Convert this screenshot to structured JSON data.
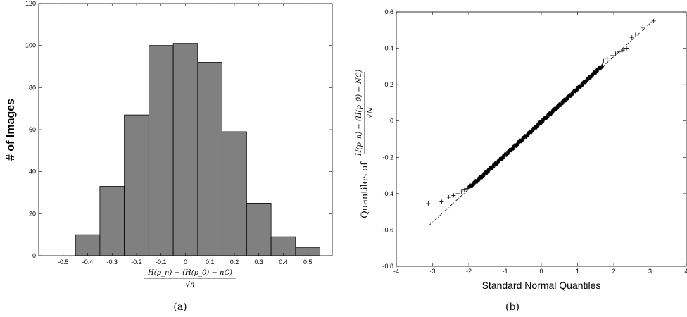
{
  "chart_data": [
    {
      "type": "bar",
      "panel": "(a)",
      "categories": [
        "-0.4",
        "-0.3",
        "-0.2",
        "-0.1",
        "0",
        "0.1",
        "0.2",
        "0.3",
        "0.4",
        "0.5"
      ],
      "values": [
        10,
        33,
        67,
        100,
        101,
        92,
        59,
        25,
        9,
        4
      ],
      "xlabel_num": "H(p_n) − (H(p_0) − nC)",
      "xlabel_den": "√n",
      "ylabel": "# of Images",
      "xlim": [
        -0.6,
        0.6
      ],
      "ylim": [
        0,
        120
      ],
      "xticks": [
        "-0.5",
        "-0.4",
        "-0.3",
        "-0.2",
        "-0.1",
        "0",
        "0.1",
        "0.2",
        "0.3",
        "0.4",
        "0.5"
      ],
      "yticks": [
        "0",
        "20",
        "40",
        "60",
        "80",
        "100",
        "120"
      ],
      "bar_color": "#808080",
      "grid": false
    },
    {
      "type": "scatter",
      "panel": "(b)",
      "xlabel": "Standard Normal Quantiles",
      "ylabel_prefix": "Quantiles of",
      "ylabel_num": "H(p_n) − (H(p_0) + NC)",
      "ylabel_den": "√N",
      "xlim": [
        -4,
        4
      ],
      "ylim": [
        -0.8,
        0.6
      ],
      "xticks": [
        "-4",
        "-3",
        "-2",
        "-1",
        "0",
        "1",
        "2",
        "3",
        "4"
      ],
      "yticks": [
        "-0.8",
        "-0.6",
        "-0.4",
        "-0.2",
        "0",
        "0.2",
        "0.4",
        "0.6"
      ],
      "reference_line": {
        "x": [
          -3.1,
          3.1
        ],
        "y": [
          -0.575,
          0.555
        ]
      },
      "tail_points": [
        {
          "x": -3.12,
          "y": -0.455
        },
        {
          "x": -2.75,
          "y": -0.445
        },
        {
          "x": -2.55,
          "y": -0.42
        },
        {
          "x": -2.42,
          "y": -0.41
        },
        {
          "x": -2.3,
          "y": -0.4
        },
        {
          "x": -2.2,
          "y": -0.39
        },
        {
          "x": -2.12,
          "y": -0.38
        },
        {
          "x": -2.05,
          "y": -0.372
        },
        {
          "x": 1.72,
          "y": 0.33
        },
        {
          "x": 1.82,
          "y": 0.345
        },
        {
          "x": 1.95,
          "y": 0.36
        },
        {
          "x": 2.05,
          "y": 0.37
        },
        {
          "x": 2.15,
          "y": 0.38
        },
        {
          "x": 2.25,
          "y": 0.39
        },
        {
          "x": 2.35,
          "y": 0.4
        },
        {
          "x": 2.5,
          "y": 0.46
        },
        {
          "x": 2.6,
          "y": 0.475
        },
        {
          "x": 2.8,
          "y": 0.515
        },
        {
          "x": 3.1,
          "y": 0.55
        }
      ],
      "bulk": {
        "x_from": -2.0,
        "x_to": 1.68,
        "n": 460,
        "slope": 0.1835,
        "intercept": -0.005
      },
      "marker": "+",
      "grid": false
    }
  ],
  "captions": {
    "a": "(a)",
    "b": "(b)"
  }
}
